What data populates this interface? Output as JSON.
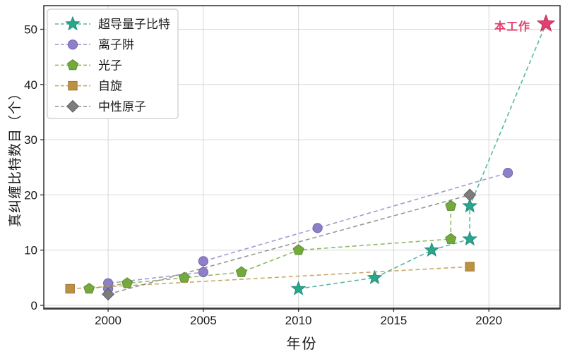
{
  "figure": {
    "background": "#ffffff",
    "grid_color": "#d7d7d7",
    "spine_color": "#2e2e2e",
    "text_color": "#1a1a1a"
  },
  "chart_data": {
    "type": "scatter",
    "title": "",
    "xlabel": "年份",
    "ylabel": "真纠缠比特数目（个）",
    "xlim": [
      1996.62,
      2023.74
    ],
    "ylim": [
      -0.51,
      54.28
    ],
    "xticks": [
      2000,
      2005,
      2010,
      2015,
      2020
    ],
    "yticks": [
      0,
      10,
      20,
      30,
      40,
      50
    ],
    "grid": true,
    "line_style": "dashed",
    "legend_position": "upper-left",
    "series": [
      {
        "name": "超导量子比特",
        "key": "superconducting-qubits",
        "marker": "star",
        "color": "#2aa68c",
        "edge": "#1f8d76",
        "points": [
          [
            2010,
            3
          ],
          [
            2014,
            5
          ],
          [
            2017,
            10
          ],
          [
            2019,
            12
          ],
          [
            2019,
            18
          ],
          [
            2023,
            51
          ]
        ],
        "highlight_last": true
      },
      {
        "name": "离子阱",
        "key": "ion-trap",
        "marker": "circle",
        "color": "#8e7fc8",
        "edge": "#7163b3",
        "points": [
          [
            2000,
            3
          ],
          [
            2000,
            4
          ],
          [
            2005,
            6
          ],
          [
            2005,
            8
          ],
          [
            2011,
            14
          ],
          [
            2021,
            24
          ]
        ],
        "highlight_last": false
      },
      {
        "name": "光子",
        "key": "photon",
        "marker": "pentagon",
        "color": "#74a93e",
        "edge": "#5a8a2d",
        "points": [
          [
            1999,
            3
          ],
          [
            2001,
            4
          ],
          [
            2004,
            5
          ],
          [
            2007,
            6
          ],
          [
            2010,
            10
          ],
          [
            2018,
            12
          ],
          [
            2018,
            18
          ]
        ],
        "highlight_last": false
      },
      {
        "name": "自旋",
        "key": "spin",
        "marker": "square",
        "color": "#bd9142",
        "edge": "#9d7631",
        "points": [
          [
            1998,
            3
          ],
          [
            2019,
            7
          ]
        ],
        "highlight_last": false
      },
      {
        "name": "中性原子",
        "key": "neutral-atom",
        "marker": "diamond",
        "color": "#7d7d7d",
        "edge": "#5f5f5f",
        "points": [
          [
            2000,
            2
          ],
          [
            2019,
            20
          ]
        ],
        "highlight_last": false
      }
    ],
    "annotation": {
      "text": "本工作",
      "x": 2023,
      "y": 51,
      "color": "#e2406e",
      "edge": "#c02b59"
    }
  }
}
